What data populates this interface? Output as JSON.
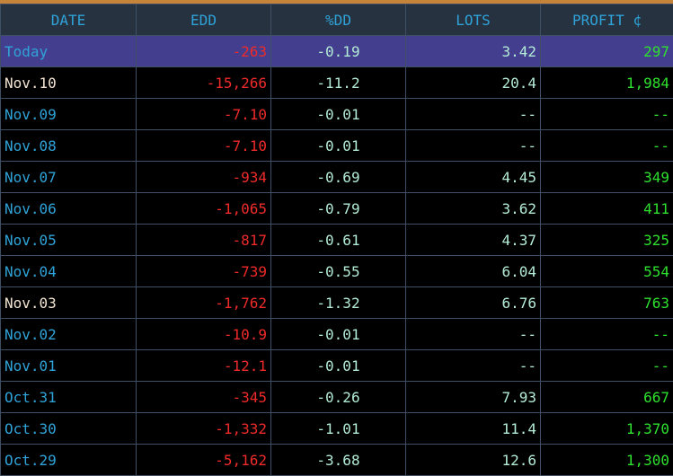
{
  "headers": {
    "date": "DATE",
    "edd": "EDD",
    "pdd": "%DD",
    "lots": "LOTS",
    "profit": "PROFIT ¢"
  },
  "rows": [
    {
      "date": "Today",
      "edd": "-263",
      "pdd": "-0.19",
      "lots": "3.42",
      "profit": "297",
      "date_color": "blue"
    },
    {
      "date": "Nov.10",
      "edd": "-15,266",
      "pdd": "-11.2",
      "lots": "20.4",
      "profit": "1,984",
      "date_color": "cream"
    },
    {
      "date": "Nov.09",
      "edd": "-7.10",
      "pdd": "-0.01",
      "lots": "--",
      "profit": "--",
      "date_color": "blue"
    },
    {
      "date": "Nov.08",
      "edd": "-7.10",
      "pdd": "-0.01",
      "lots": "--",
      "profit": "--",
      "date_color": "blue"
    },
    {
      "date": "Nov.07",
      "edd": "-934",
      "pdd": "-0.69",
      "lots": "4.45",
      "profit": "349",
      "date_color": "blue"
    },
    {
      "date": "Nov.06",
      "edd": "-1,065",
      "pdd": "-0.79",
      "lots": "3.62",
      "profit": "411",
      "date_color": "blue"
    },
    {
      "date": "Nov.05",
      "edd": "-817",
      "pdd": "-0.61",
      "lots": "4.37",
      "profit": "325",
      "date_color": "blue"
    },
    {
      "date": "Nov.04",
      "edd": "-739",
      "pdd": "-0.55",
      "lots": "6.04",
      "profit": "554",
      "date_color": "blue"
    },
    {
      "date": "Nov.03",
      "edd": "-1,762",
      "pdd": "-1.32",
      "lots": "6.76",
      "profit": "763",
      "date_color": "cream"
    },
    {
      "date": "Nov.02",
      "edd": "-10.9",
      "pdd": "-0.01",
      "lots": "--",
      "profit": "--",
      "date_color": "blue"
    },
    {
      "date": "Nov.01",
      "edd": "-12.1",
      "pdd": "-0.01",
      "lots": "--",
      "profit": "--",
      "date_color": "blue"
    },
    {
      "date": "Oct.31",
      "edd": "-345",
      "pdd": "-0.26",
      "lots": "7.93",
      "profit": "667",
      "date_color": "blue"
    },
    {
      "date": "Oct.30",
      "edd": "-1,332",
      "pdd": "-1.01",
      "lots": "11.4",
      "profit": "1,370",
      "date_color": "blue"
    },
    {
      "date": "Oct.29",
      "edd": "-5,162",
      "pdd": "-3.68",
      "lots": "12.6",
      "profit": "1,300",
      "date_color": "blue"
    }
  ],
  "colors": {
    "header_bg": "#263240",
    "header_text": "#2fa3d8",
    "today_row_bg": "#443e8e",
    "top_bar": "#c6843a",
    "negative": "#ee2a2a",
    "neutral": "#b3ecd6",
    "positive": "#2ee02e",
    "date_blue": "#2fa3d8",
    "date_cream": "#f3e4d2",
    "grid": "#3f5066"
  }
}
